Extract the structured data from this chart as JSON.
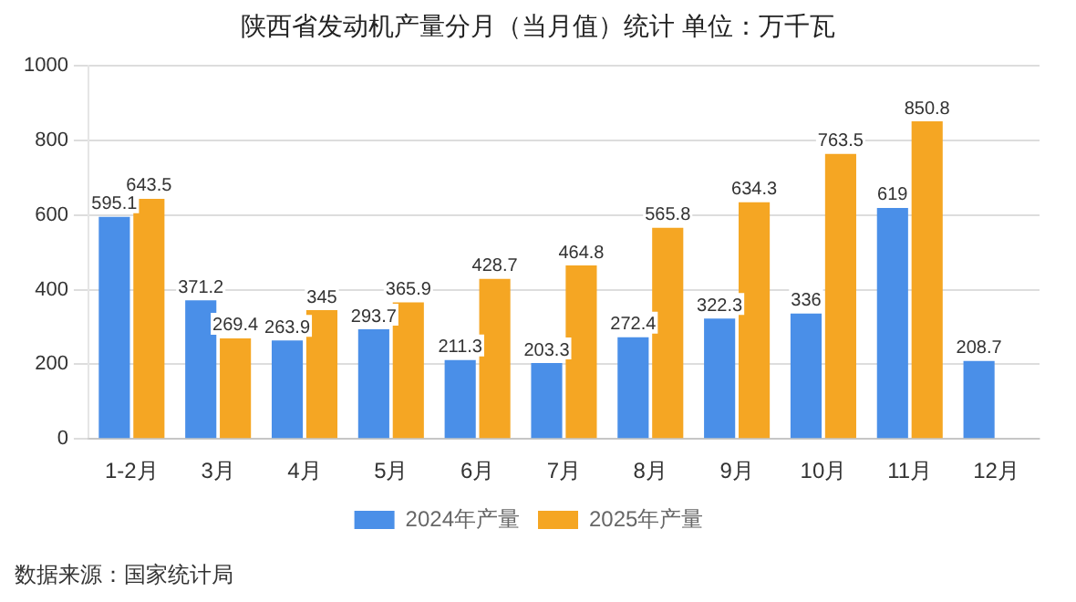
{
  "chart_data": {
    "type": "bar",
    "title": "陕西省发动机产量分月（当月值）统计  单位：万千瓦",
    "categories": [
      "1-2月",
      "3月",
      "4月",
      "5月",
      "6月",
      "7月",
      "8月",
      "9月",
      "10月",
      "11月",
      "12月"
    ],
    "series": [
      {
        "name": "2024年产量",
        "color": "#4a8fe8",
        "values": [
          595.1,
          371.2,
          263.9,
          293.7,
          211.3,
          203.3,
          272.4,
          322.3,
          336,
          619,
          208.7
        ]
      },
      {
        "name": "2025年产量",
        "color": "#f5a623",
        "values": [
          643.5,
          269.4,
          345,
          365.9,
          428.7,
          464.8,
          565.8,
          634.3,
          763.5,
          850.8,
          null
        ]
      }
    ],
    "ylim": [
      0,
      1000
    ],
    "yticks": [
      0,
      200,
      400,
      600,
      800,
      1000
    ],
    "grid": "y",
    "legend": "bottom",
    "data_labels": true,
    "annotations": [
      "数据来源：国家统计局"
    ]
  }
}
